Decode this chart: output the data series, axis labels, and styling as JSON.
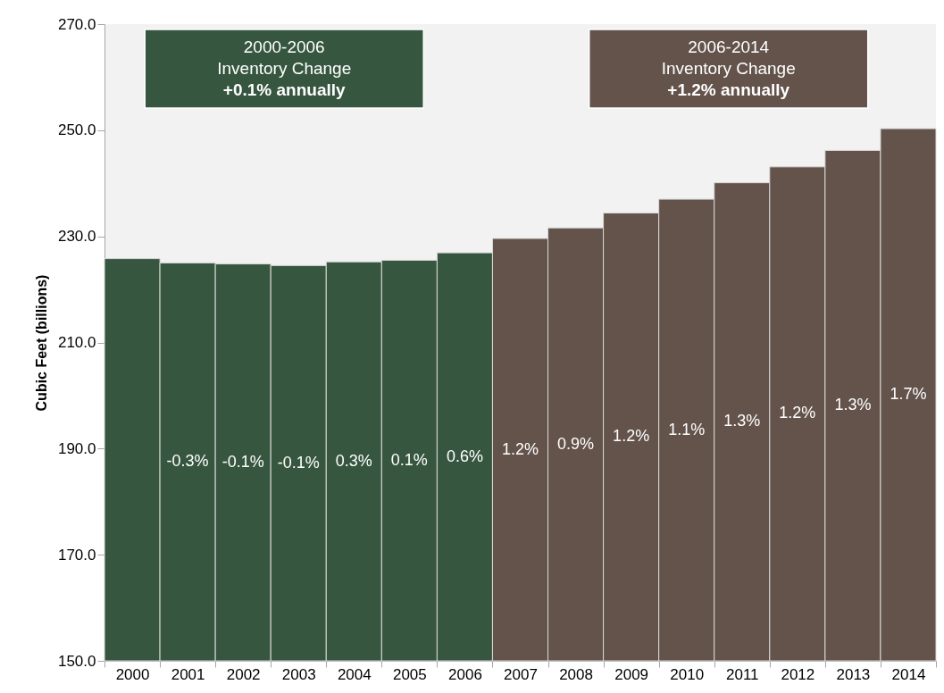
{
  "chart_data": {
    "type": "bar",
    "ylabel": "Cubic Feet (billions)",
    "categories": [
      "2000",
      "2001",
      "2002",
      "2003",
      "2004",
      "2005",
      "2006",
      "2007",
      "2008",
      "2009",
      "2010",
      "2011",
      "2012",
      "2013",
      "2014"
    ],
    "series": [
      {
        "color": "#37563f",
        "values": [
          225.8,
          225.0,
          224.8,
          224.5,
          225.2,
          225.5,
          226.9,
          null,
          null,
          null,
          null,
          null,
          null,
          null,
          null
        ]
      },
      {
        "color": "#63534b",
        "values": [
          null,
          null,
          null,
          null,
          null,
          null,
          null,
          229.6,
          231.6,
          234.4,
          237.0,
          240.1,
          243.1,
          246.2,
          250.3
        ]
      }
    ],
    "ylim": [
      150,
      270
    ],
    "yticks": [
      {
        "value": 150,
        "label": "150.0"
      },
      {
        "value": 170,
        "label": "170.0"
      },
      {
        "value": 190,
        "label": "190.0"
      },
      {
        "value": 210,
        "label": "210.0"
      },
      {
        "value": 230,
        "label": "230.0"
      },
      {
        "value": 250,
        "label": "250.0"
      },
      {
        "value": 270,
        "label": "270.0"
      }
    ],
    "annotations": [
      "2000-2006\nInventory Change\n+0.1% annually",
      "2006-2014\nInventory Change\n+1.2% annually",
      "-0.3%",
      "-0.1%",
      "-0.1%",
      "0.3%",
      "0.1%",
      "0.6%",
      "1.2%",
      "0.9%",
      "1.2%",
      "1.1%",
      "1.3%",
      "1.2%",
      "1.3%",
      "1.7%"
    ]
  }
}
